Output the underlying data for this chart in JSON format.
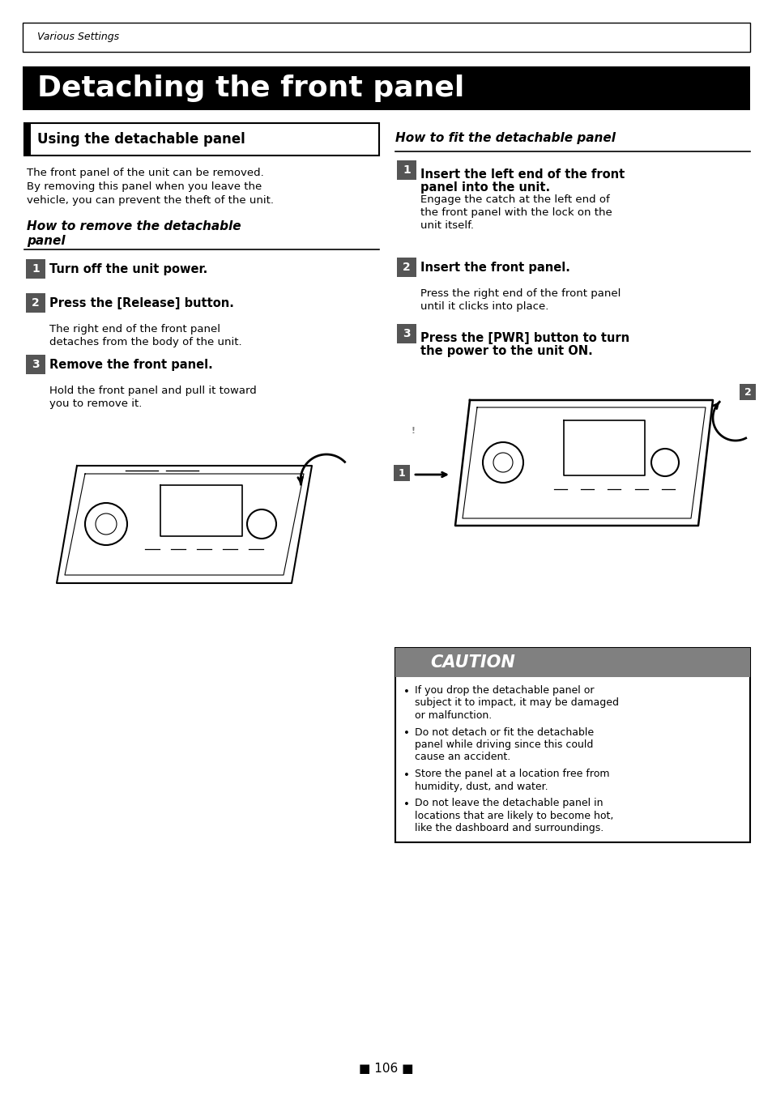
{
  "bg_color": "#ffffff",
  "header_text": "Various Settings",
  "main_title": "Detaching the front panel",
  "main_title_bg": "#000000",
  "main_title_color": "#ffffff",
  "section_left_title": "Using the detachable panel",
  "left_col_intro1": "The front panel of the unit can be removed.",
  "left_col_intro2a": "By removing this panel when you leave the",
  "left_col_intro2b": "vehicle, you can prevent the theft of the unit.",
  "left_subsection_title_a": "How to remove the detachable",
  "left_subsection_title_b": "panel",
  "right_subsection_title": "How to fit the detachable panel",
  "left_steps": [
    {
      "num": "1",
      "bold": "Turn off the unit power.",
      "body": []
    },
    {
      "num": "2",
      "bold": "Press the [Release] button.",
      "body": [
        "The right end of the front panel",
        "detaches from the body of the unit."
      ]
    },
    {
      "num": "3",
      "bold": "Remove the front panel.",
      "body": [
        "Hold the front panel and pull it toward",
        "you to remove it."
      ]
    }
  ],
  "right_steps": [
    {
      "num": "1",
      "bold_lines": [
        "Insert the left end of the front",
        "panel into the unit."
      ],
      "body": [
        "Engage the catch at the left end of",
        "the front panel with the lock on the",
        "unit itself."
      ]
    },
    {
      "num": "2",
      "bold_lines": [
        "Insert the front panel."
      ],
      "body": [
        "Press the right end of the front panel",
        "until it clicks into place."
      ]
    },
    {
      "num": "3",
      "bold_lines": [
        "Press the [PWR] button to turn",
        "the power to the unit ON."
      ],
      "body": []
    }
  ],
  "caution_title": "CAUTION",
  "caution_bg": "#808080",
  "caution_items": [
    [
      "If you drop the detachable panel or",
      "subject it to impact, it may be damaged",
      "or malfunction."
    ],
    [
      "Do not detach or fit the detachable",
      "panel while driving since this could",
      "cause an accident."
    ],
    [
      "Store the panel at a location free from",
      "humidity, dust, and water."
    ],
    [
      "Do not leave the detachable panel in",
      "locations that are likely to become hot,",
      "like the dashboard and surroundings."
    ]
  ],
  "page_num": "■ 106 ■",
  "step_num_bg": "#555555",
  "step_num_color": "#ffffff"
}
